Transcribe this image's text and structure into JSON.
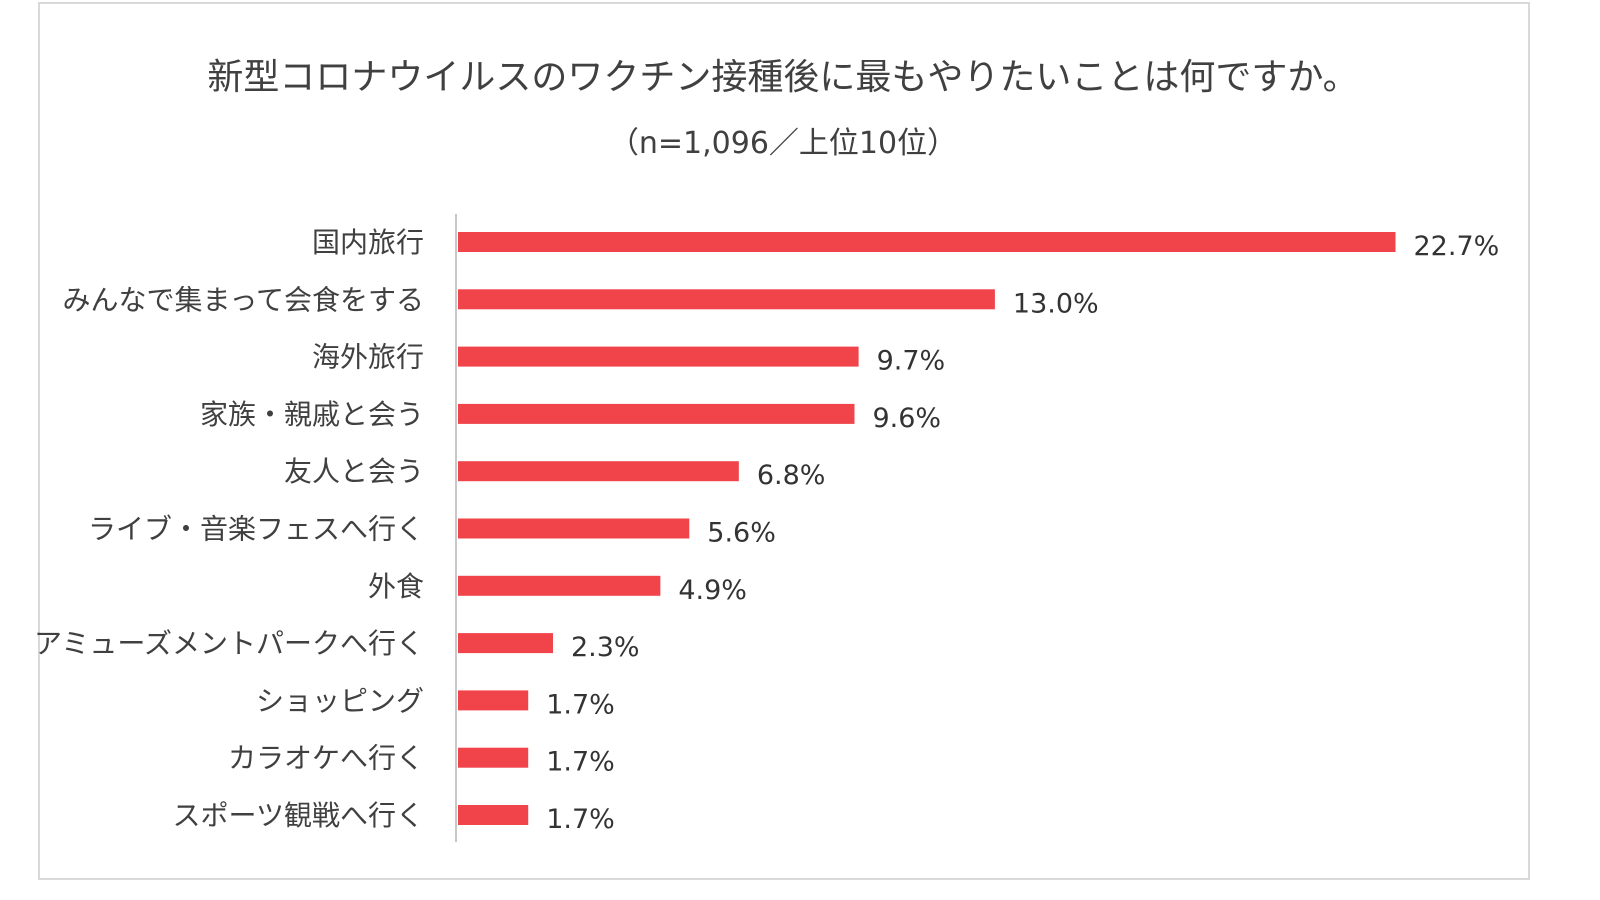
{
  "chart_data": {
    "type": "bar",
    "orientation": "horizontal",
    "title": "新型コロナウイルスのワクチン接種後に最もやりたいことは何ですか。",
    "subtitle": "（n=1,096／上位10位）",
    "categories": [
      "国内旅行",
      "みんなで集まって会食をする",
      "海外旅行",
      "家族・親戚と会う",
      "友人と会う",
      "ライブ・音楽フェスへ行く",
      "外食",
      "アミューズメントパークへ行く",
      "ショッピング",
      "カラオケへ行く",
      "スポーツ観戦へ行く"
    ],
    "values": [
      22.7,
      13.0,
      9.7,
      9.6,
      6.8,
      5.6,
      4.9,
      2.3,
      1.7,
      1.7,
      1.7
    ],
    "value_labels": [
      "22.7%",
      "13.0%",
      "9.7%",
      "9.6%",
      "6.8%",
      "5.6%",
      "4.9%",
      "2.3%",
      "1.7%",
      "1.7%",
      "1.7%"
    ],
    "unit": "%",
    "bar_color": "#f0444a",
    "grid": false,
    "legend": "none"
  }
}
